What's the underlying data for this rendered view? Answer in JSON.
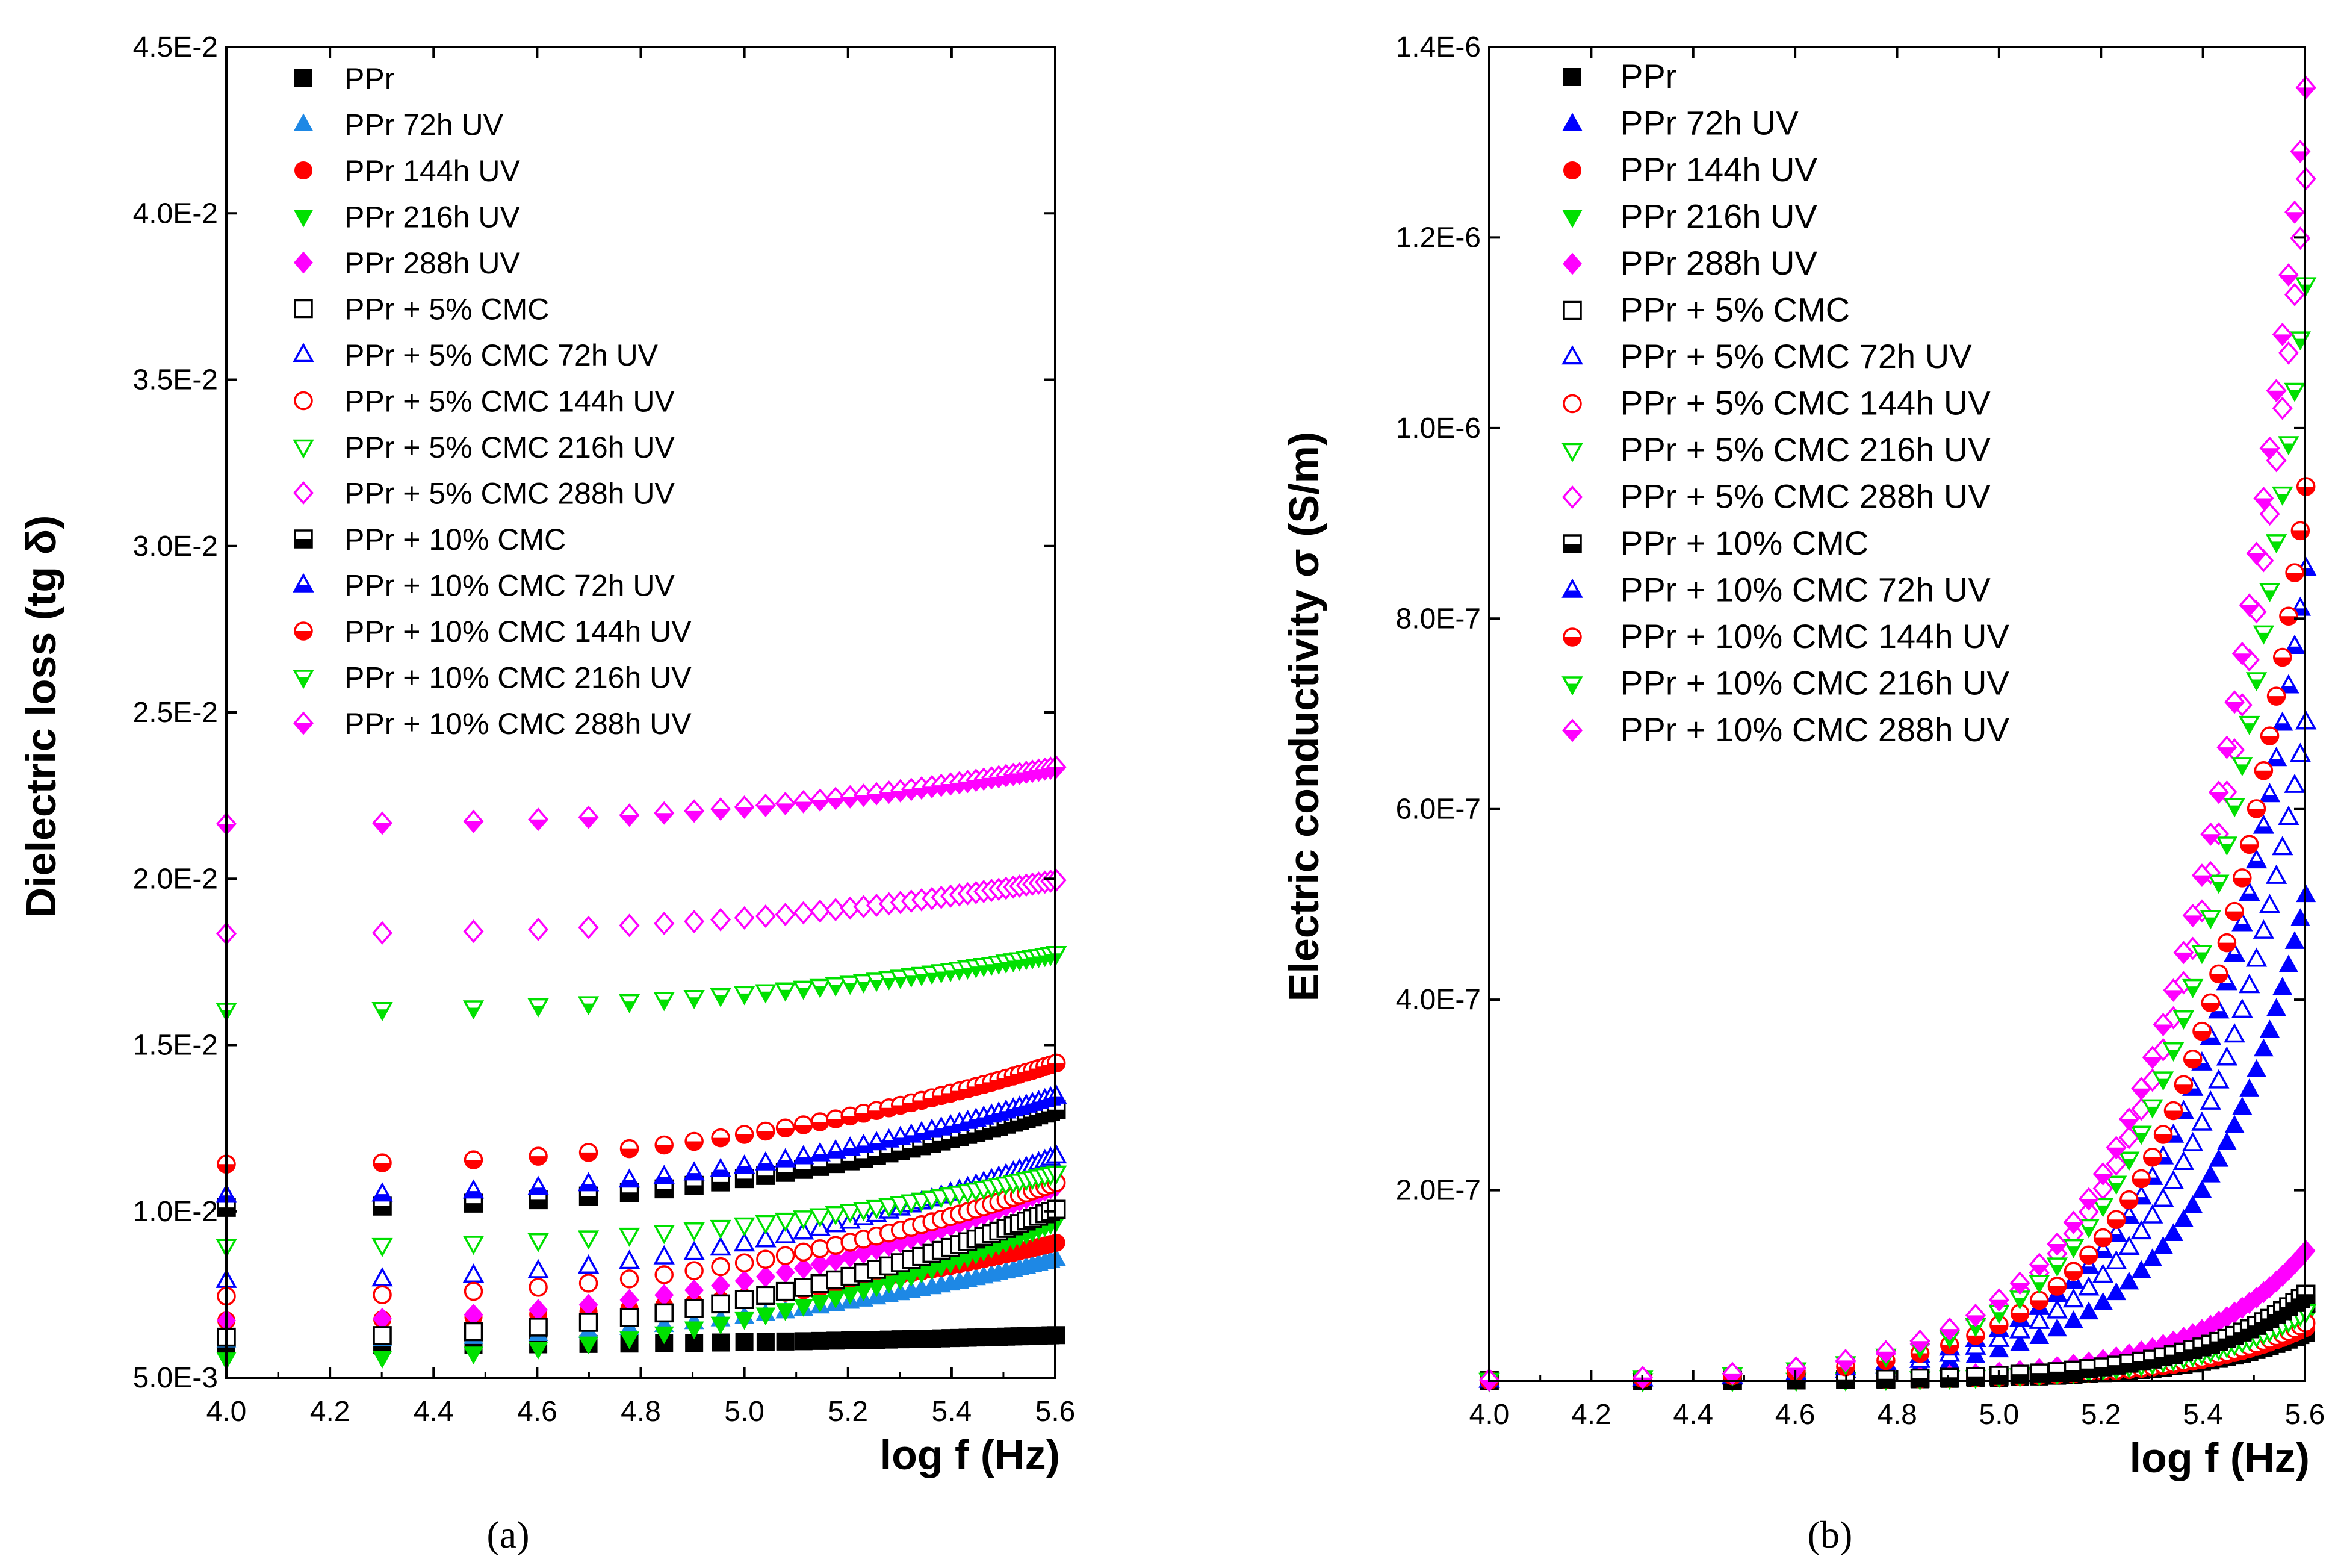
{
  "chart_data": [
    {
      "type": "scatter",
      "panel_label": "(a)",
      "xlabel": "log f (Hz)",
      "ylabel": "Dielectric loss (tg δ)",
      "xlim": [
        4.0,
        5.6
      ],
      "ylim": [
        0.005,
        0.045
      ],
      "xticks": [
        "4.0",
        "4.2",
        "4.4",
        "4.6",
        "4.8",
        "5.0",
        "5.2",
        "5.4",
        "5.6"
      ],
      "yticks": [
        "5.0E-3",
        "1.0E-2",
        "1.5E-2",
        "2.0E-2",
        "2.5E-2",
        "3.0E-2",
        "3.5E-2",
        "4.0E-2",
        "4.5E-2"
      ],
      "grid": false,
      "legend_position": "top-left",
      "x": [
        4.0,
        4.301,
        4.477,
        4.602,
        4.699,
        4.778,
        4.845,
        4.903,
        4.954,
        5.0,
        5.041,
        5.079,
        5.114,
        5.146,
        5.176,
        5.204,
        5.23,
        5.255,
        5.279,
        5.301,
        5.322,
        5.342,
        5.362,
        5.38,
        5.398,
        5.415,
        5.431,
        5.447,
        5.462,
        5.477,
        5.491,
        5.505,
        5.519,
        5.531,
        5.544,
        5.556,
        5.568,
        5.58,
        5.591,
        5.602
      ],
      "series": [
        {
          "name": "PPr",
          "marker": "square",
          "fill": "full",
          "color": "#000000",
          "start": 0.00598,
          "end": 0.00628
        },
        {
          "name": "PPr 72h UV",
          "marker": "triangle-up",
          "fill": "full",
          "color": "#1e88e5",
          "start": 0.00612,
          "end": 0.00855
        },
        {
          "name": "PPr 144h UV",
          "marker": "circle",
          "fill": "full",
          "color": "#ff0000",
          "start": 0.00672,
          "end": 0.00905
        },
        {
          "name": "PPr 216h UV",
          "marker": "triangle-down",
          "fill": "full",
          "color": "#00e000",
          "start": 0.00555,
          "end": 0.00968
        },
        {
          "name": "PPr 288h UV",
          "marker": "diamond",
          "fill": "full",
          "color": "#ff00ff",
          "start": 0.00672,
          "end": 0.01075
        },
        {
          "name": "PPr +  5% CMC",
          "marker": "square",
          "fill": "open",
          "color": "#000000",
          "start": 0.00622,
          "end": 0.01005
        },
        {
          "name": "PPr +  5% CMC 72h UV",
          "marker": "triangle-up",
          "fill": "open",
          "color": "#0000ff",
          "start": 0.00792,
          "end": 0.01165
        },
        {
          "name": "PPr +  5% CMC 144h UV",
          "marker": "circle",
          "fill": "open",
          "color": "#ff0000",
          "start": 0.00745,
          "end": 0.01085
        },
        {
          "name": "PPr +  5% CMC 216h UV",
          "marker": "triangle-down",
          "fill": "open",
          "color": "#00e000",
          "start": 0.00895,
          "end": 0.01115
        },
        {
          "name": "PPr +  5% CMC 288h UV",
          "marker": "diamond",
          "fill": "open",
          "color": "#ff00ff",
          "start": 0.01835,
          "end": 0.01995
        },
        {
          "name": "PPr + 10% CMC",
          "marker": "square",
          "fill": "half",
          "color": "#000000",
          "start": 0.01012,
          "end": 0.01305
        },
        {
          "name": "PPr + 10% CMC   72h UV",
          "marker": "triangle-up",
          "fill": "half",
          "color": "#0000ff",
          "start": 0.01048,
          "end": 0.01345
        },
        {
          "name": "PPr + 10% CMC  144h UV",
          "marker": "circle",
          "fill": "half",
          "color": "#ff0000",
          "start": 0.01142,
          "end": 0.01445
        },
        {
          "name": "PPr + 10% CMC  216h UV",
          "marker": "triangle-down",
          "fill": "half",
          "color": "#00e000",
          "start": 0.01605,
          "end": 0.01775
        },
        {
          "name": "PPr + 10% CMC  288h UV",
          "marker": "diamond",
          "fill": "half",
          "color": "#ff00ff",
          "start": 0.02165,
          "end": 0.02335
        }
      ]
    },
    {
      "type": "scatter",
      "panel_label": "(b)",
      "xlabel": "log f (Hz)",
      "ylabel": "Electric conductivity σ (S/m)",
      "xlim": [
        4.0,
        5.6
      ],
      "ylim": [
        0,
        1.4e-06
      ],
      "xticks": [
        "4.0",
        "4.2",
        "4.4",
        "4.6",
        "4.8",
        "5.0",
        "5.2",
        "5.4",
        "5.6"
      ],
      "yticks": [
        "2.0E-7",
        "4.0E-7",
        "6.0E-7",
        "8.0E-7",
        "1.0E-6",
        "1.2E-6",
        "1.4E-6"
      ],
      "grid": false,
      "legend_position": "top-left",
      "x": [
        4.0,
        4.301,
        4.477,
        4.602,
        4.699,
        4.778,
        4.845,
        4.903,
        4.954,
        5.0,
        5.041,
        5.079,
        5.114,
        5.146,
        5.176,
        5.204,
        5.23,
        5.255,
        5.279,
        5.301,
        5.322,
        5.342,
        5.362,
        5.38,
        5.398,
        5.415,
        5.431,
        5.447,
        5.462,
        5.477,
        5.491,
        5.505,
        5.519,
        5.531,
        5.544,
        5.556,
        5.568,
        5.58,
        5.591,
        5.602
      ],
      "series": [
        {
          "name": "PPr",
          "marker": "square",
          "fill": "full",
          "color": "#000000",
          "end": 5e-08
        },
        {
          "name": "PPr  72h UV",
          "marker": "triangle-up",
          "fill": "full",
          "color": "#0000ff",
          "end": 5.05e-07
        },
        {
          "name": "PPr 144h UV",
          "marker": "circle",
          "fill": "full",
          "color": "#ff0000",
          "end": 5.5e-08
        },
        {
          "name": "PPr 216h UV",
          "marker": "triangle-down",
          "fill": "full",
          "color": "#00e000",
          "end": 6.5e-08
        },
        {
          "name": "PPr 288h UV",
          "marker": "diamond",
          "fill": "full",
          "color": "#ff00ff",
          "end": 1.35e-07
        },
        {
          "name": "PPr +  5% CMC",
          "marker": "square",
          "fill": "open",
          "color": "#000000",
          "end": 8e-08
        },
        {
          "name": "PPr +  5% CMC 72h UV",
          "marker": "triangle-up",
          "fill": "open",
          "color": "#0000ff",
          "end": 6.85e-07
        },
        {
          "name": "PPr +  5% CMC 144h UV",
          "marker": "circle",
          "fill": "open",
          "color": "#ff0000",
          "end": 6e-08
        },
        {
          "name": "PPr +  5% CMC 216h UV",
          "marker": "triangle-down",
          "fill": "open",
          "color": "#00e000",
          "end": 7.2e-08
        },
        {
          "name": "PPr +  5% CMC 288h UV",
          "marker": "diamond",
          "fill": "open",
          "color": "#ff00ff",
          "end": 1.25e-06
        },
        {
          "name": "PPr + 10% CMC",
          "marker": "square",
          "fill": "half",
          "color": "#000000",
          "end": 9e-08
        },
        {
          "name": "PPr + 10% CMC   72h UV",
          "marker": "triangle-up",
          "fill": "half",
          "color": "#0000ff",
          "end": 8.45e-07
        },
        {
          "name": "PPr + 10% CMC  144h UV",
          "marker": "circle",
          "fill": "half",
          "color": "#ff0000",
          "end": 9.3e-07
        },
        {
          "name": "PPr + 10% CMC  216h UV",
          "marker": "triangle-down",
          "fill": "half",
          "color": "#00e000",
          "end": 1.14e-06
        },
        {
          "name": "PPr + 10% CMC  288h UV",
          "marker": "diamond",
          "fill": "half",
          "color": "#ff00ff",
          "end": 1.345e-06
        }
      ]
    }
  ]
}
